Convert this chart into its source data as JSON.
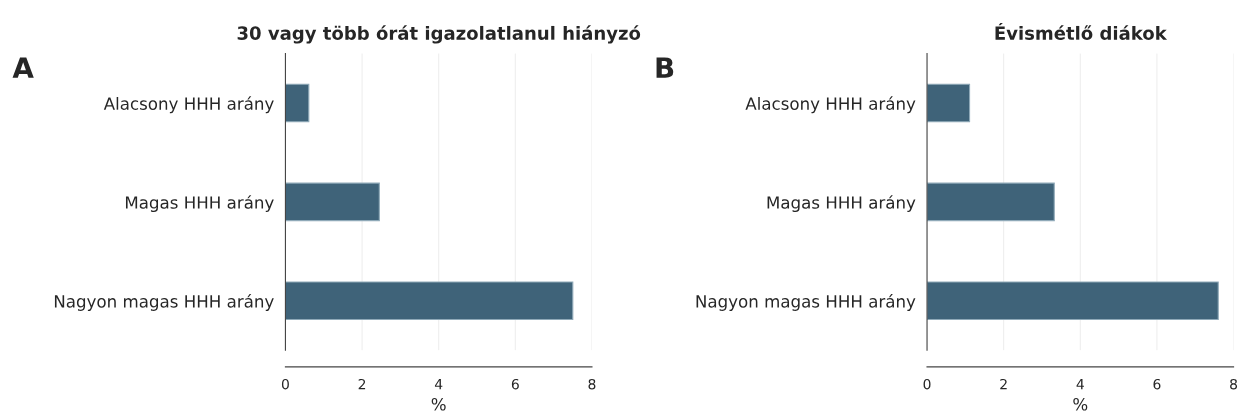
{
  "chart_data": [
    {
      "type": "bar",
      "orientation": "horizontal",
      "title": "30 vagy több órát igazolatlanul hiányzó",
      "xlabel": "%",
      "categories": [
        "Alacsony HHH arány",
        "Magas HHH arány",
        "Nagyon magas HHH arány"
      ],
      "values": [
        0.61,
        2.45,
        7.5
      ],
      "color": "#3f6379",
      "xlim": [
        0,
        8
      ],
      "xticks": [
        0,
        2,
        4,
        6,
        8
      ],
      "grid": "x",
      "annotations": [
        "A"
      ]
    },
    {
      "type": "bar",
      "orientation": "horizontal",
      "title": "Évismétlő diákok",
      "xlabel": "%",
      "categories": [
        "Alacsony HHH arány",
        "Magas HHH arány",
        "Nagyon magas HHH arány"
      ],
      "values": [
        1.11,
        3.32,
        7.6
      ],
      "color": "#3f6379",
      "xlim": [
        0,
        8
      ],
      "xticks": [
        0,
        2,
        4,
        6,
        8
      ],
      "grid": "x",
      "annotations": [
        "B"
      ]
    }
  ]
}
